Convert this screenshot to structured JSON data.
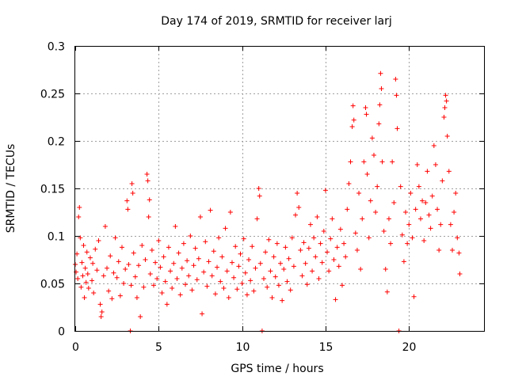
{
  "chart_data": {
    "type": "scatter",
    "title": "Day 174 of 2019, SRMTID for receiver larj",
    "xlabel": "GPS time / hours",
    "ylabel": "SRMTID / TECUs",
    "xlim": [
      0,
      24.5
    ],
    "ylim": [
      0,
      0.3
    ],
    "x_ticks": [
      0,
      5,
      10,
      15,
      20
    ],
    "x_tick_labels": [
      "0",
      "5",
      "10",
      "15",
      "20"
    ],
    "y_ticks": [
      0,
      0.05,
      0.1,
      0.15,
      0.2,
      0.25,
      0.3
    ],
    "y_tick_labels": [
      "0",
      "0.05",
      "0.1",
      "0.15",
      "0.2",
      "0.25",
      "0.3"
    ],
    "grid": true,
    "marker": "plus",
    "series": [
      {
        "name": "SRMTID",
        "color": "#ff0000",
        "points": [
          [
            0.0,
            0.07
          ],
          [
            0.05,
            0.062
          ],
          [
            0.1,
            0.081
          ],
          [
            0.15,
            0.055
          ],
          [
            0.2,
            0.12
          ],
          [
            0.25,
            0.13
          ],
          [
            0.3,
            0.098
          ],
          [
            0.35,
            0.046
          ],
          [
            0.4,
            0.072
          ],
          [
            0.45,
            0.058
          ],
          [
            0.5,
            0.09
          ],
          [
            0.55,
            0.035
          ],
          [
            0.6,
            0.066
          ],
          [
            0.65,
            0.051
          ],
          [
            0.7,
            0.083
          ],
          [
            0.75,
            0.06
          ],
          [
            0.8,
            0.045
          ],
          [
            0.9,
            0.077
          ],
          [
            1.0,
            0.053
          ],
          [
            1.05,
            0.071
          ],
          [
            1.1,
            0.04
          ],
          [
            1.2,
            0.086
          ],
          [
            1.3,
            0.064
          ],
          [
            1.4,
            0.095
          ],
          [
            1.5,
            0.028
          ],
          [
            1.55,
            0.015
          ],
          [
            1.6,
            0.02
          ],
          [
            1.7,
            0.058
          ],
          [
            1.8,
            0.11
          ],
          [
            1.9,
            0.066
          ],
          [
            2.0,
            0.042
          ],
          [
            2.1,
            0.079
          ],
          [
            2.2,
            0.034
          ],
          [
            2.3,
            0.061
          ],
          [
            2.4,
            0.098
          ],
          [
            2.5,
            0.056
          ],
          [
            2.6,
            0.073
          ],
          [
            2.7,
            0.037
          ],
          [
            2.8,
            0.088
          ],
          [
            2.9,
            0.05
          ],
          [
            3.0,
            0.065
          ],
          [
            3.1,
            0.137
          ],
          [
            3.15,
            0.128
          ],
          [
            3.2,
            0.07
          ],
          [
            3.3,
            0.0
          ],
          [
            3.35,
            0.048
          ],
          [
            3.4,
            0.155
          ],
          [
            3.45,
            0.145
          ],
          [
            3.5,
            0.082
          ],
          [
            3.6,
            0.057
          ],
          [
            3.7,
            0.035
          ],
          [
            3.8,
            0.069
          ],
          [
            3.9,
            0.015
          ],
          [
            4.0,
            0.09
          ],
          [
            4.1,
            0.046
          ],
          [
            4.2,
            0.075
          ],
          [
            4.3,
            0.165
          ],
          [
            4.35,
            0.158
          ],
          [
            4.4,
            0.12
          ],
          [
            4.45,
            0.138
          ],
          [
            4.5,
            0.06
          ],
          [
            4.6,
            0.085
          ],
          [
            4.7,
            0.048
          ],
          [
            4.8,
            0.072
          ],
          [
            4.9,
            0.055
          ],
          [
            5.0,
            0.095
          ],
          [
            5.1,
            0.067
          ],
          [
            5.2,
            0.04
          ],
          [
            5.3,
            0.078
          ],
          [
            5.4,
            0.052
          ],
          [
            5.5,
            0.028
          ],
          [
            5.6,
            0.088
          ],
          [
            5.7,
            0.063
          ],
          [
            5.8,
            0.045
          ],
          [
            5.9,
            0.071
          ],
          [
            6.0,
            0.11
          ],
          [
            6.1,
            0.055
          ],
          [
            6.2,
            0.082
          ],
          [
            6.3,
            0.038
          ],
          [
            6.4,
            0.066
          ],
          [
            6.5,
            0.092
          ],
          [
            6.6,
            0.049
          ],
          [
            6.7,
            0.074
          ],
          [
            6.8,
            0.058
          ],
          [
            6.9,
            0.1
          ],
          [
            7.0,
            0.043
          ],
          [
            7.1,
            0.069
          ],
          [
            7.2,
            0.087
          ],
          [
            7.3,
            0.054
          ],
          [
            7.4,
            0.076
          ],
          [
            7.5,
            0.12
          ],
          [
            7.6,
            0.018
          ],
          [
            7.7,
            0.062
          ],
          [
            7.8,
            0.094
          ],
          [
            7.9,
            0.047
          ],
          [
            8.0,
            0.073
          ],
          [
            8.1,
            0.127
          ],
          [
            8.2,
            0.058
          ],
          [
            8.3,
            0.084
          ],
          [
            8.4,
            0.039
          ],
          [
            8.5,
            0.067
          ],
          [
            8.6,
            0.098
          ],
          [
            8.7,
            0.052
          ],
          [
            8.8,
            0.078
          ],
          [
            8.9,
            0.045
          ],
          [
            9.0,
            0.108
          ],
          [
            9.1,
            0.063
          ],
          [
            9.2,
            0.035
          ],
          [
            9.3,
            0.125
          ],
          [
            9.4,
            0.072
          ],
          [
            9.5,
            0.056
          ],
          [
            9.6,
            0.089
          ],
          [
            9.7,
            0.044
          ],
          [
            9.8,
            0.068
          ],
          [
            9.9,
            0.081
          ],
          [
            10.0,
            0.05
          ],
          [
            10.1,
            0.097
          ],
          [
            10.2,
            0.061
          ],
          [
            10.3,
            0.038
          ],
          [
            10.4,
            0.075
          ],
          [
            10.5,
            0.053
          ],
          [
            10.6,
            0.089
          ],
          [
            10.7,
            0.042
          ],
          [
            10.8,
            0.066
          ],
          [
            10.9,
            0.118
          ],
          [
            11.0,
            0.15
          ],
          [
            11.05,
            0.142
          ],
          [
            11.1,
            0.071
          ],
          [
            11.2,
            0.0
          ],
          [
            11.3,
            0.055
          ],
          [
            11.4,
            0.083
          ],
          [
            11.5,
            0.046
          ],
          [
            11.6,
            0.096
          ],
          [
            11.7,
            0.063
          ],
          [
            11.8,
            0.035
          ],
          [
            11.9,
            0.078
          ],
          [
            12.0,
            0.057
          ],
          [
            12.1,
            0.092
          ],
          [
            12.2,
            0.048
          ],
          [
            12.3,
            0.071
          ],
          [
            12.4,
            0.032
          ],
          [
            12.5,
            0.065
          ],
          [
            12.6,
            0.088
          ],
          [
            12.7,
            0.052
          ],
          [
            12.8,
            0.076
          ],
          [
            12.9,
            0.043
          ],
          [
            13.0,
            0.098
          ],
          [
            13.1,
            0.068
          ],
          [
            13.2,
            0.122
          ],
          [
            13.3,
            0.145
          ],
          [
            13.4,
            0.13
          ],
          [
            13.5,
            0.085
          ],
          [
            13.6,
            0.058
          ],
          [
            13.7,
            0.093
          ],
          [
            13.8,
            0.071
          ],
          [
            13.9,
            0.049
          ],
          [
            14.0,
            0.087
          ],
          [
            14.1,
            0.112
          ],
          [
            14.2,
            0.063
          ],
          [
            14.3,
            0.098
          ],
          [
            14.4,
            0.078
          ],
          [
            14.5,
            0.12
          ],
          [
            14.6,
            0.055
          ],
          [
            14.7,
            0.092
          ],
          [
            14.8,
            0.072
          ],
          [
            14.9,
            0.105
          ],
          [
            15.0,
            0.148
          ],
          [
            15.1,
            0.083
          ],
          [
            15.2,
            0.063
          ],
          [
            15.3,
            0.097
          ],
          [
            15.4,
            0.118
          ],
          [
            15.5,
            0.075
          ],
          [
            15.6,
            0.033
          ],
          [
            15.7,
            0.088
          ],
          [
            15.8,
            0.068
          ],
          [
            15.9,
            0.107
          ],
          [
            16.0,
            0.048
          ],
          [
            16.1,
            0.092
          ],
          [
            16.2,
            0.078
          ],
          [
            16.3,
            0.128
          ],
          [
            16.4,
            0.155
          ],
          [
            16.5,
            0.178
          ],
          [
            16.6,
            0.215
          ],
          [
            16.65,
            0.237
          ],
          [
            16.7,
            0.222
          ],
          [
            16.8,
            0.103
          ],
          [
            16.9,
            0.085
          ],
          [
            17.0,
            0.145
          ],
          [
            17.1,
            0.065
          ],
          [
            17.2,
            0.118
          ],
          [
            17.3,
            0.178
          ],
          [
            17.4,
            0.235
          ],
          [
            17.45,
            0.228
          ],
          [
            17.5,
            0.165
          ],
          [
            17.6,
            0.098
          ],
          [
            17.7,
            0.137
          ],
          [
            17.8,
            0.203
          ],
          [
            17.9,
            0.185
          ],
          [
            18.0,
            0.125
          ],
          [
            18.1,
            0.152
          ],
          [
            18.2,
            0.218
          ],
          [
            18.25,
            0.238
          ],
          [
            18.3,
            0.271
          ],
          [
            18.35,
            0.255
          ],
          [
            18.4,
            0.178
          ],
          [
            18.5,
            0.105
          ],
          [
            18.6,
            0.065
          ],
          [
            18.7,
            0.041
          ],
          [
            18.8,
            0.118
          ],
          [
            18.9,
            0.092
          ],
          [
            19.0,
            0.178
          ],
          [
            19.1,
            0.135
          ],
          [
            19.2,
            0.265
          ],
          [
            19.25,
            0.248
          ],
          [
            19.3,
            0.213
          ],
          [
            19.4,
            0.0
          ],
          [
            19.5,
            0.152
          ],
          [
            19.6,
            0.101
          ],
          [
            19.7,
            0.073
          ],
          [
            19.8,
            0.125
          ],
          [
            19.9,
            0.092
          ],
          [
            20.0,
            0.112
          ],
          [
            20.1,
            0.145
          ],
          [
            20.2,
            0.098
          ],
          [
            20.3,
            0.036
          ],
          [
            20.4,
            0.128
          ],
          [
            20.5,
            0.175
          ],
          [
            20.6,
            0.152
          ],
          [
            20.7,
            0.118
          ],
          [
            20.8,
            0.137
          ],
          [
            20.9,
            0.095
          ],
          [
            21.0,
            0.135
          ],
          [
            21.1,
            0.168
          ],
          [
            21.2,
            0.122
          ],
          [
            21.3,
            0.108
          ],
          [
            21.4,
            0.142
          ],
          [
            21.5,
            0.195
          ],
          [
            21.6,
            0.175
          ],
          [
            21.7,
            0.128
          ],
          [
            21.8,
            0.085
          ],
          [
            21.9,
            0.112
          ],
          [
            22.0,
            0.158
          ],
          [
            22.1,
            0.225
          ],
          [
            22.15,
            0.235
          ],
          [
            22.2,
            0.248
          ],
          [
            22.25,
            0.242
          ],
          [
            22.3,
            0.205
          ],
          [
            22.4,
            0.168
          ],
          [
            22.5,
            0.112
          ],
          [
            22.6,
            0.085
          ],
          [
            22.7,
            0.125
          ],
          [
            22.8,
            0.145
          ],
          [
            22.9,
            0.098
          ],
          [
            23.0,
            0.082
          ],
          [
            23.05,
            0.06
          ]
        ]
      }
    ]
  }
}
